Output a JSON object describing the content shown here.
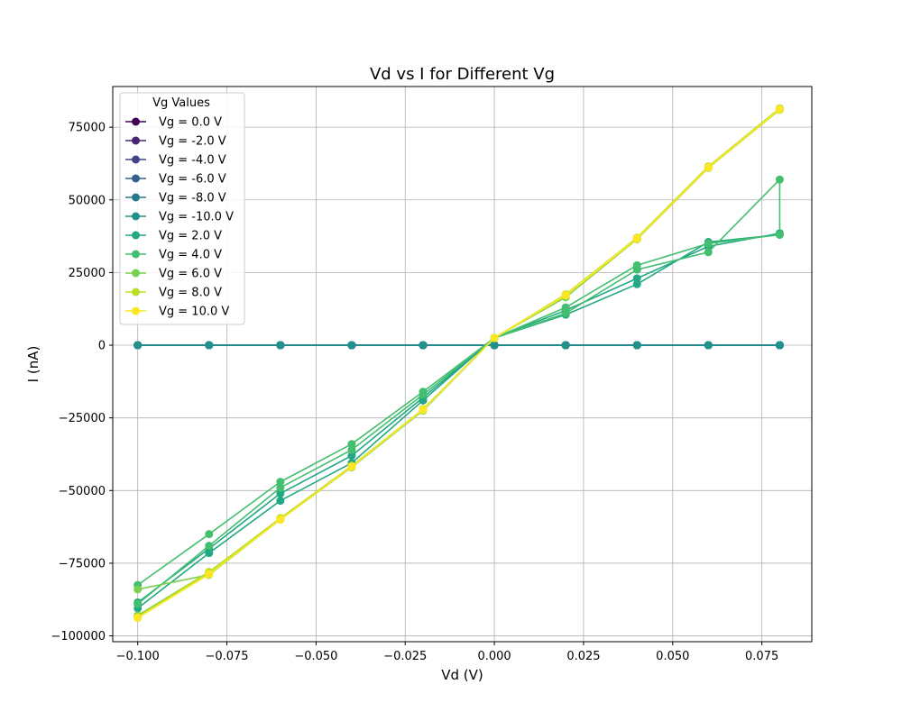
{
  "chart_data": {
    "type": "line",
    "title": "Vd vs I for Different Vg",
    "xlabel": "Vd (V)",
    "ylabel": "I (nA)",
    "xlim": [
      -0.107,
      0.089
    ],
    "ylim": [
      -102000,
      89000
    ],
    "xticks": [
      -0.1,
      -0.075,
      -0.05,
      -0.025,
      0.0,
      0.025,
      0.05,
      0.075
    ],
    "xtick_labels": [
      "−0.100",
      "−0.075",
      "−0.050",
      "−0.025",
      "0.000",
      "0.025",
      "0.050",
      "0.075"
    ],
    "yticks": [
      -100000,
      -75000,
      -50000,
      -25000,
      0,
      25000,
      50000,
      75000
    ],
    "ytick_labels": [
      "−100000",
      "−75000",
      "−50000",
      "−25000",
      "0",
      "25000",
      "50000",
      "75000"
    ],
    "grid": true,
    "legend_title": "Vg Values",
    "legend_position": "top-left",
    "series": [
      {
        "name": "Vg = 0.0 V",
        "color": "#440154",
        "x": [
          -0.1,
          -0.08,
          -0.06,
          -0.04,
          -0.02,
          0.0,
          0.02,
          0.04,
          0.06,
          0.08,
          0.08,
          0.06,
          0.04,
          0.02,
          0.0,
          -0.02,
          -0.04,
          -0.06,
          -0.08,
          -0.1
        ],
        "y": [
          -5,
          -4,
          -3,
          -2,
          -1,
          0,
          1,
          2,
          3,
          4,
          4,
          3,
          2,
          1,
          0,
          -1,
          -2,
          -3,
          -4,
          -5
        ]
      },
      {
        "name": "Vg = -2.0 V",
        "color": "#482475",
        "x": [
          -0.1,
          -0.08,
          -0.06,
          -0.04,
          -0.02,
          0.0,
          0.02,
          0.04,
          0.06,
          0.08,
          0.08,
          0.06,
          0.04,
          0.02,
          0.0,
          -0.02,
          -0.04,
          -0.06,
          -0.08,
          -0.1
        ],
        "y": [
          -5,
          -4,
          -3,
          -2,
          -1,
          0,
          1,
          2,
          3,
          4,
          4,
          3,
          2,
          1,
          0,
          -1,
          -2,
          -3,
          -4,
          -5
        ]
      },
      {
        "name": "Vg = -4.0 V",
        "color": "#414487",
        "x": [
          -0.1,
          -0.08,
          -0.06,
          -0.04,
          -0.02,
          0.0,
          0.02,
          0.04,
          0.06,
          0.08,
          0.08,
          0.06,
          0.04,
          0.02,
          0.0,
          -0.02,
          -0.04,
          -0.06,
          -0.08,
          -0.1
        ],
        "y": [
          -5,
          -4,
          -3,
          -2,
          -1,
          0,
          1,
          2,
          3,
          4,
          4,
          3,
          2,
          1,
          0,
          -1,
          -2,
          -3,
          -4,
          -5
        ]
      },
      {
        "name": "Vg = -6.0 V",
        "color": "#355f8d",
        "x": [
          -0.1,
          -0.08,
          -0.06,
          -0.04,
          -0.02,
          0.0,
          0.02,
          0.04,
          0.06,
          0.08,
          0.08,
          0.06,
          0.04,
          0.02,
          0.0,
          -0.02,
          -0.04,
          -0.06,
          -0.08,
          -0.1
        ],
        "y": [
          -5,
          -4,
          -3,
          -2,
          -1,
          0,
          1,
          2,
          3,
          4,
          4,
          3,
          2,
          1,
          0,
          -1,
          -2,
          -3,
          -4,
          -5
        ]
      },
      {
        "name": "Vg = -8.0 V",
        "color": "#2a788e",
        "x": [
          -0.1,
          -0.08,
          -0.06,
          -0.04,
          -0.02,
          0.0,
          0.02,
          0.04,
          0.06,
          0.08,
          0.08,
          0.06,
          0.04,
          0.02,
          0.0,
          -0.02,
          -0.04,
          -0.06,
          -0.08,
          -0.1
        ],
        "y": [
          -5,
          -4,
          -3,
          -2,
          -1,
          0,
          1,
          2,
          3,
          4,
          4,
          3,
          2,
          1,
          0,
          -1,
          -2,
          -3,
          -4,
          -5
        ]
      },
      {
        "name": "Vg = -10.0 V",
        "color": "#21918c",
        "x": [
          -0.1,
          -0.08,
          -0.06,
          -0.04,
          -0.02,
          0.0,
          0.02,
          0.04,
          0.06,
          0.08,
          0.08,
          0.06,
          0.04,
          0.02,
          0.0,
          -0.02,
          -0.04,
          -0.06,
          -0.08,
          -0.1
        ],
        "y": [
          -5,
          -4,
          -3,
          -2,
          -1,
          0,
          1,
          2,
          3,
          4,
          4,
          3,
          2,
          1,
          0,
          -1,
          -2,
          -3,
          -4,
          -5
        ]
      },
      {
        "name": "Vg = 2.0 V",
        "color": "#22a884",
        "x": [
          -0.1,
          -0.08,
          -0.06,
          -0.04,
          -0.02,
          0.0,
          0.02,
          0.04,
          0.06,
          0.08,
          0.08,
          0.06,
          0.04,
          0.02,
          0.0,
          -0.02,
          -0.04,
          -0.06,
          -0.08,
          -0.1
        ],
        "y": [
          -90500,
          -71500,
          -53500,
          -40500,
          -19000,
          2500,
          12000,
          23000,
          34000,
          38500,
          38000,
          35500,
          21000,
          10500,
          2500,
          -18000,
          -38000,
          -51000,
          -70000,
          -88500
        ]
      },
      {
        "name": "Vg = 4.0 V",
        "color": "#44bf70",
        "x": [
          -0.1,
          -0.08,
          -0.06,
          -0.04,
          -0.02,
          0.0,
          0.02,
          0.04,
          0.06,
          0.08,
          0.08,
          0.06,
          0.04,
          0.02,
          0.0,
          -0.02,
          -0.04,
          -0.06,
          -0.08,
          -0.1
        ],
        "y": [
          -82500,
          -65000,
          -47000,
          -34000,
          -16000,
          2500,
          13000,
          27500,
          35000,
          38000,
          57000,
          32000,
          26000,
          11000,
          2500,
          -17000,
          -36000,
          -49000,
          -69000,
          -89000
        ]
      },
      {
        "name": "Vg = 6.0 V",
        "color": "#7ad151",
        "x": [
          -0.1,
          -0.08,
          -0.06,
          -0.04,
          -0.02,
          0.0,
          0.02,
          0.04,
          0.06,
          0.08,
          0.08,
          0.06,
          0.04,
          0.02,
          0.0,
          -0.02,
          -0.04,
          -0.06,
          -0.08,
          -0.1
        ],
        "y": [
          -84000,
          -79000,
          -60000,
          -42000,
          -22000,
          2500,
          17000,
          37000,
          61500,
          81500,
          81000,
          61000,
          36500,
          16500,
          2500,
          -22500,
          -42000,
          -60000,
          -78000,
          -93000
        ]
      },
      {
        "name": "Vg = 8.0 V",
        "color": "#bddf26",
        "x": [
          -0.1,
          -0.08,
          -0.06,
          -0.04,
          -0.02,
          0.0,
          0.02,
          0.04,
          0.06,
          0.08,
          0.08,
          0.06,
          0.04,
          0.02,
          0.0,
          -0.02,
          -0.04,
          -0.06,
          -0.08,
          -0.1
        ],
        "y": [
          -93500,
          -78500,
          -59500,
          -41500,
          -22000,
          2500,
          17000,
          36500,
          61000,
          81000,
          81500,
          61500,
          37000,
          17500,
          2500,
          -22000,
          -41500,
          -59500,
          -78000,
          -93500
        ]
      },
      {
        "name": "Vg = 10.0 V",
        "color": "#fde725",
        "x": [
          -0.1,
          -0.08,
          -0.06,
          -0.04,
          -0.02,
          0.0,
          0.02,
          0.04,
          0.06,
          0.08,
          0.08,
          0.06,
          0.04,
          0.02,
          0.0,
          -0.02,
          -0.04,
          -0.06,
          -0.08,
          -0.1
        ],
        "y": [
          -93800,
          -78800,
          -60000,
          -41800,
          -22200,
          2500,
          17200,
          36800,
          61200,
          81200,
          81200,
          61200,
          36800,
          17200,
          2500,
          -22200,
          -41800,
          -60000,
          -78800,
          -93800
        ]
      }
    ]
  }
}
